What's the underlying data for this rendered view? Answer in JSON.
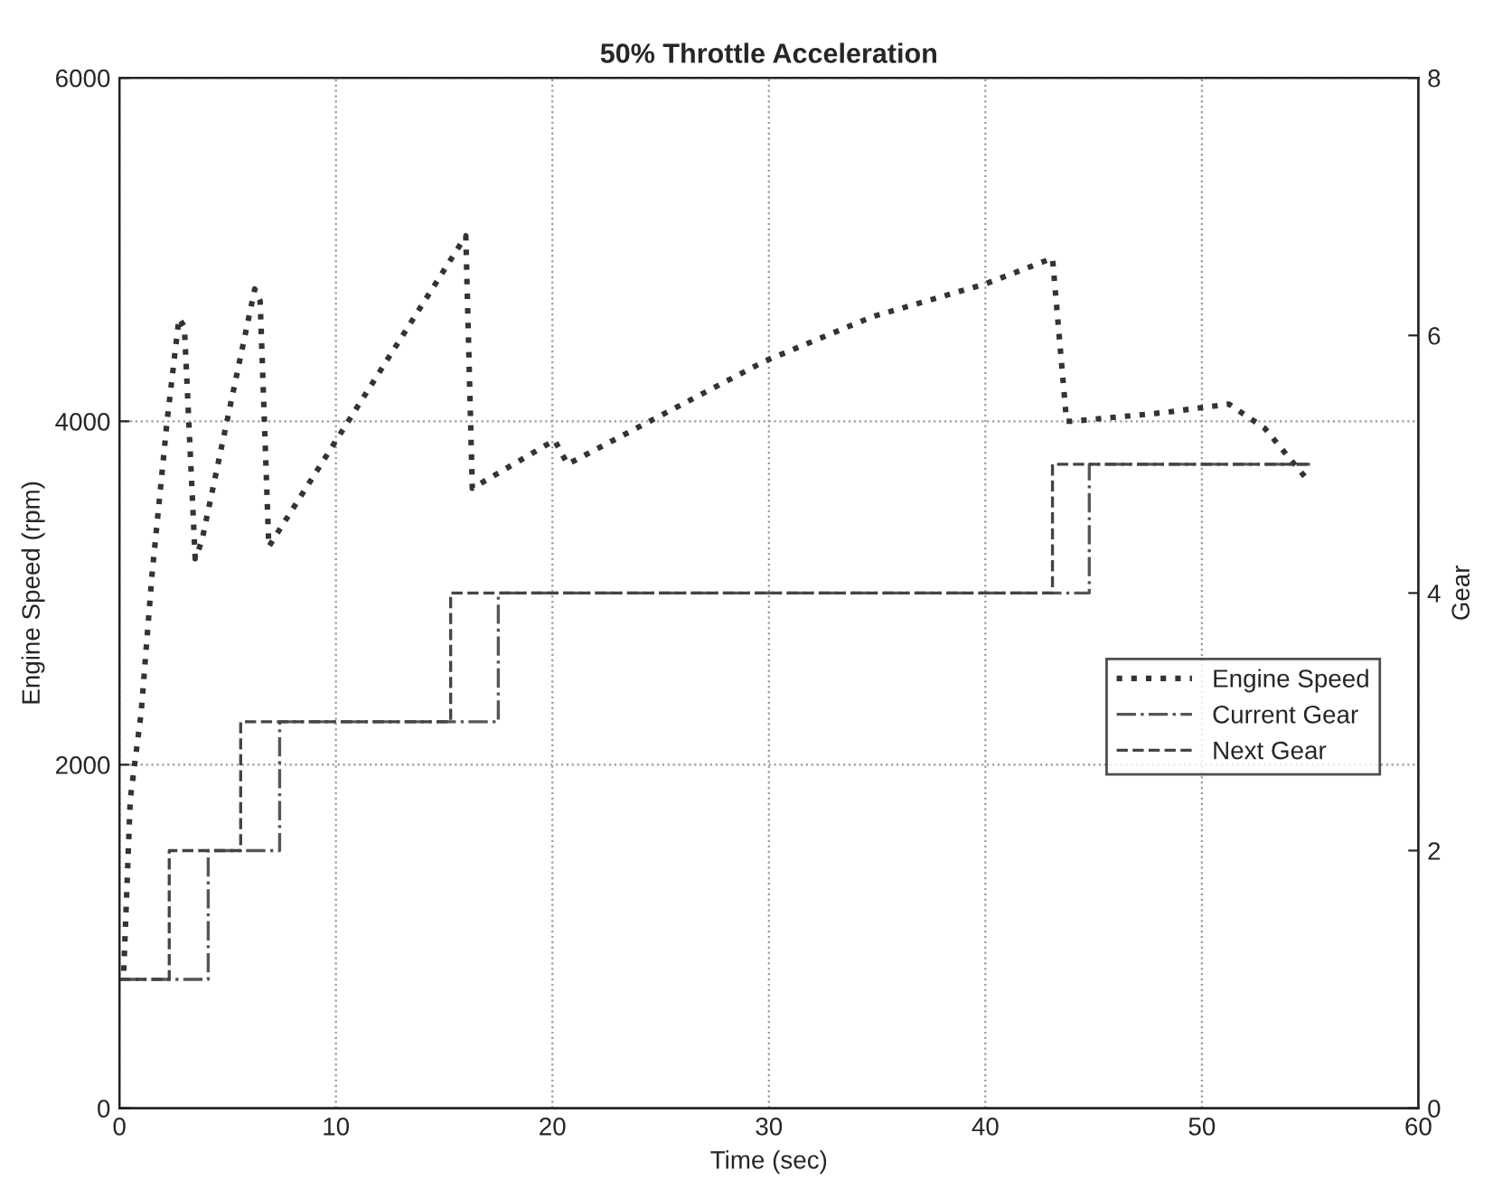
{
  "chart_data": {
    "type": "line",
    "title": "50% Throttle Acceleration",
    "xlabel": "Time (sec)",
    "ylabel": "Engine Speed (rpm)",
    "y2label": "Gear",
    "xlim": [
      0,
      60
    ],
    "xticks": [
      0,
      10,
      20,
      30,
      40,
      50,
      60
    ],
    "ylim": [
      0,
      6000
    ],
    "yticks": [
      0,
      2000,
      4000,
      6000
    ],
    "y2lim": [
      0,
      8
    ],
    "y2ticks": [
      0,
      2,
      4,
      6,
      8
    ],
    "grid": true,
    "legend": "right",
    "series": [
      {
        "name": "Engine Speed",
        "line_style": "dotted",
        "color": "#333333",
        "x": [
          0.2,
          0.5,
          1.0,
          1.5,
          2.2,
          2.75,
          3.0,
          3.5,
          3.8,
          6.25,
          6.5,
          6.9,
          16.0,
          16.3,
          20.1,
          20.7,
          29.8,
          34.8,
          40.0,
          43.1,
          43.75,
          44.0,
          48.2,
          51.25,
          52.9,
          55.0
        ],
        "values": [
          800,
          1800,
          2300,
          3100,
          4000,
          4600,
          4550,
          3200,
          3300,
          4770,
          4700,
          3270,
          5080,
          3610,
          3890,
          3750,
          4350,
          4610,
          4800,
          4950,
          4000,
          4000,
          4050,
          4100,
          3960,
          3640
        ]
      },
      {
        "name": "Current Gear",
        "type": "step",
        "axis": "y2",
        "line_style": "dashdot",
        "color": "#555555",
        "x": [
          0,
          4.1,
          7.4,
          17.5,
          44.8,
          55
        ],
        "values": [
          1,
          2,
          3,
          4,
          5,
          5
        ]
      },
      {
        "name": "Next Gear",
        "type": "step",
        "axis": "y2",
        "line_style": "dashed",
        "color": "#444444",
        "x": [
          0,
          2.3,
          5.6,
          15.3,
          43.1,
          55
        ],
        "values": [
          1,
          2,
          3,
          4,
          5,
          5
        ]
      }
    ]
  }
}
